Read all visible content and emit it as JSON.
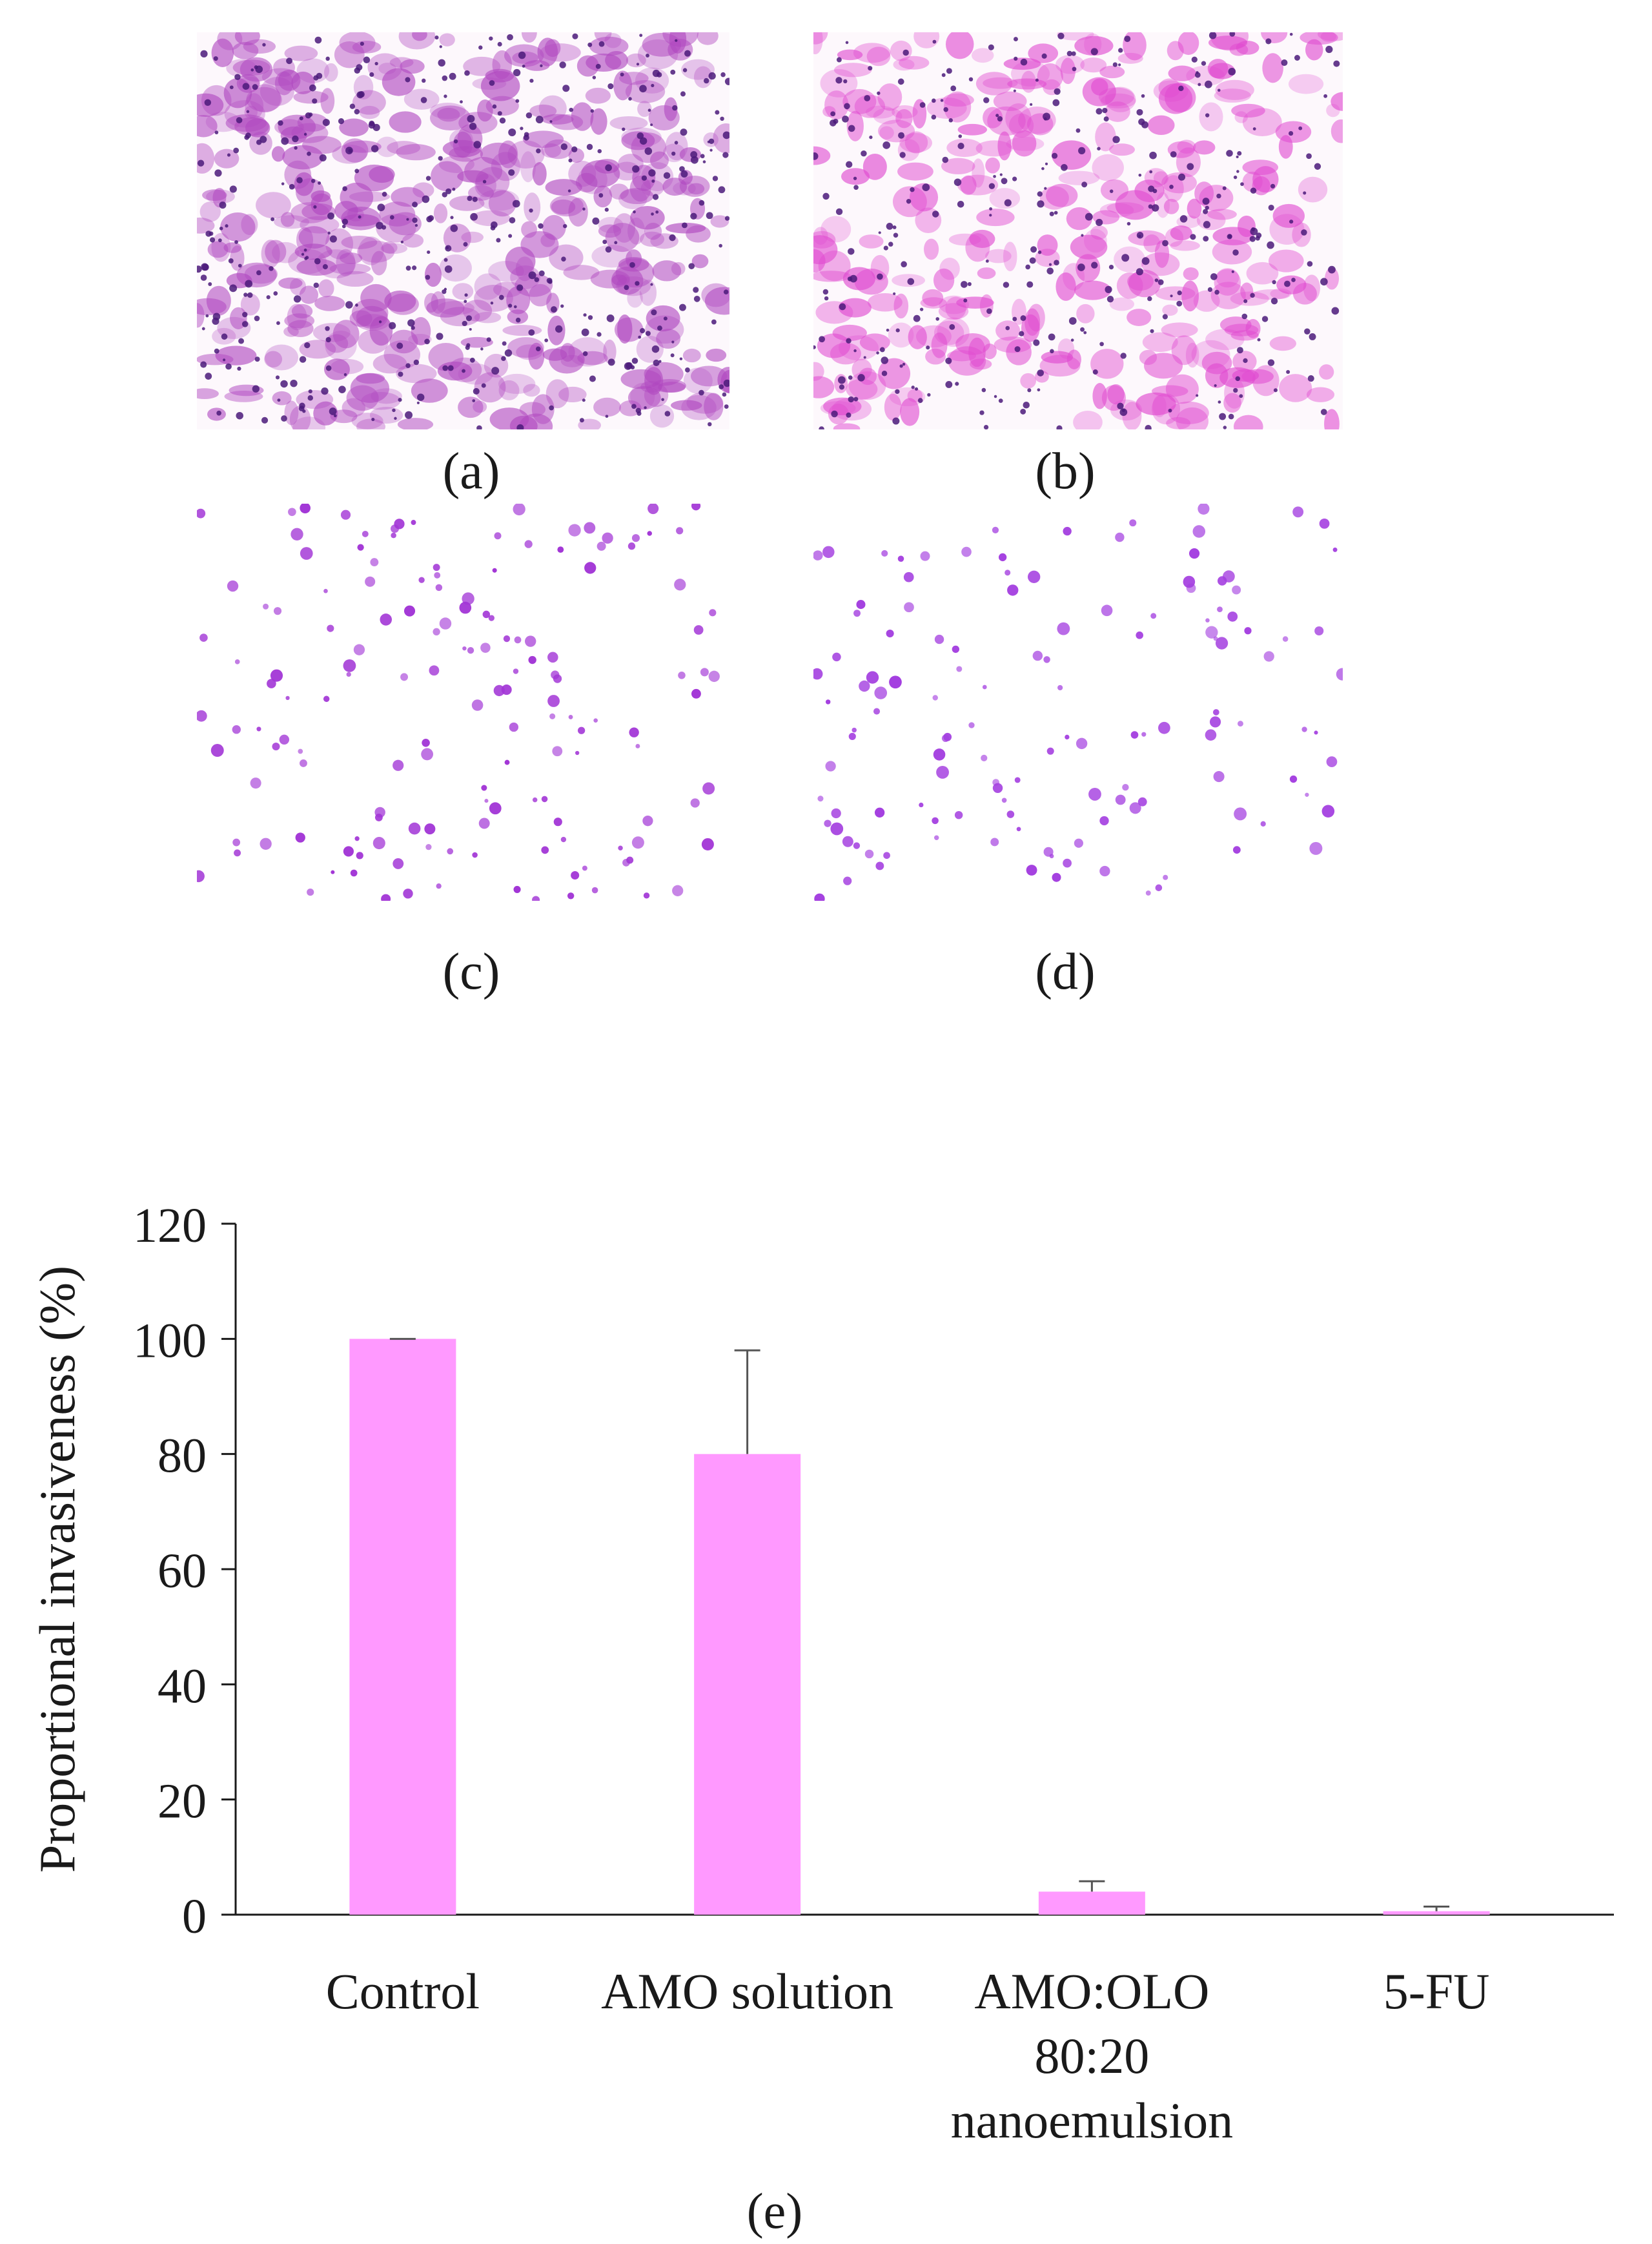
{
  "panels": [
    {
      "label": "(a)",
      "fill": "#b048c0",
      "density": 420
    },
    {
      "label": "(b)",
      "fill": "#e04ad0",
      "density": 320
    },
    {
      "label": "(c)",
      "fill": "#a235d6",
      "density": 150
    },
    {
      "label": "(d)",
      "fill": "#a43fe0",
      "density": 130
    }
  ],
  "chart_data": {
    "type": "bar",
    "categories": [
      "Control",
      "AMO solution",
      "AMO:OLO 80:20 nanoemulsion",
      "5-FU"
    ],
    "category_lines": [
      [
        "Control"
      ],
      [
        "AMO solution"
      ],
      [
        "AMO:OLO",
        "80:20",
        "nanoemulsion"
      ],
      [
        "5-FU"
      ]
    ],
    "values": [
      100,
      80,
      4,
      0.6
    ],
    "errors": [
      0,
      18,
      1.8,
      0.8
    ],
    "ylabel": "Proportional invasiveness (%)",
    "ylim": [
      0,
      120
    ],
    "yticks": [
      0,
      20,
      40,
      60,
      80,
      100,
      120
    ],
    "grid": false,
    "bar_color": "#ff99ff",
    "caption": "(e)"
  }
}
